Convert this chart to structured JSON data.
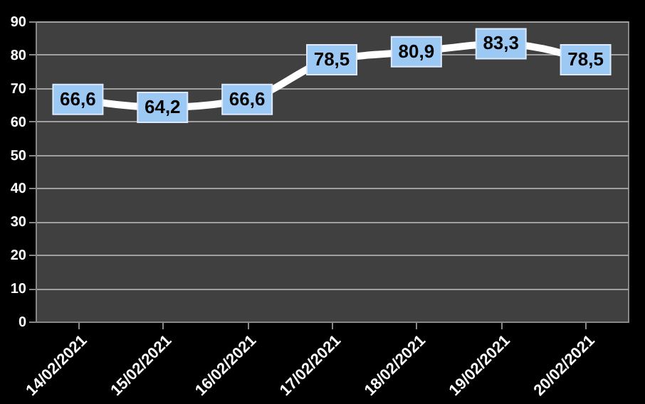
{
  "chart_data": {
    "type": "line",
    "categories": [
      "14/02/2021",
      "15/02/2021",
      "16/02/2021",
      "17/02/2021",
      "18/02/2021",
      "19/02/2021",
      "20/02/2021"
    ],
    "series": [
      {
        "color": "#ffffff",
        "values": [
          66.6,
          64.2,
          66.6,
          78.5,
          80.9,
          83.3,
          78.5
        ],
        "value_labels": [
          "66,6",
          "64,2",
          "66,6",
          "78,5",
          "80,9",
          "83,3",
          "78,5"
        ]
      }
    ],
    "ylim": [
      0,
      90
    ],
    "yticks": [
      0,
      10,
      20,
      30,
      40,
      50,
      60,
      70,
      80,
      90
    ],
    "grid": "y",
    "marker": "square",
    "line_style": "solid"
  }
}
